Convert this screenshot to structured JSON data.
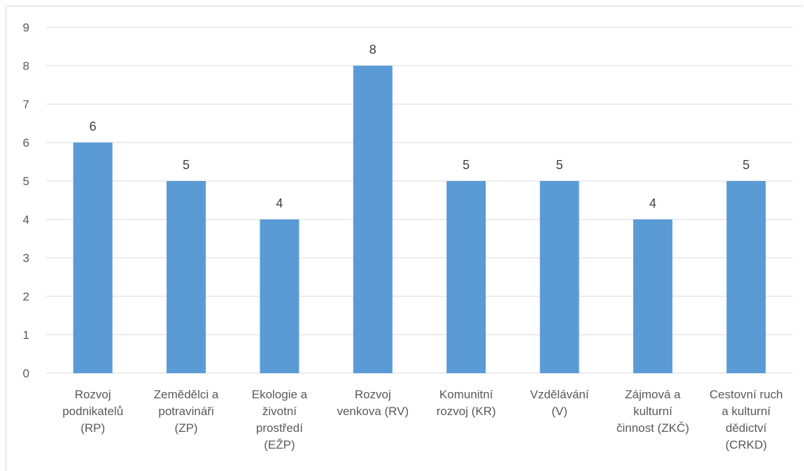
{
  "chart_data": {
    "type": "bar",
    "title": "",
    "xlabel": "",
    "ylabel": "",
    "ylim": [
      0,
      9
    ],
    "yticks": [
      0,
      1,
      2,
      3,
      4,
      5,
      6,
      7,
      8,
      9
    ],
    "grid": true,
    "legend": "none",
    "bar_color": "#5b9bd5",
    "grid_color": "#d9d9d9",
    "categories": [
      [
        "Rozvoj",
        "podnikatelů",
        "(RP)"
      ],
      [
        "Zemědělci a",
        "potravináři",
        "(ZP)"
      ],
      [
        "Ekologie a",
        "životní",
        "prostředí",
        "(EŽP)"
      ],
      [
        "Rozvoj",
        "venkova (RV)"
      ],
      [
        "Komunitní",
        "rozvoj (KR)"
      ],
      [
        "Vzdělávání",
        "(V)"
      ],
      [
        "Zájmová a",
        "kulturní",
        "činnost (ZKČ)"
      ],
      [
        "Cestovní ruch",
        "a kulturní",
        "dědictví",
        "(CRKD)"
      ]
    ],
    "values": [
      6,
      5,
      4,
      8,
      5,
      5,
      4,
      5
    ],
    "data_labels": [
      "6",
      "5",
      "4",
      "8",
      "5",
      "5",
      "4",
      "5"
    ]
  }
}
